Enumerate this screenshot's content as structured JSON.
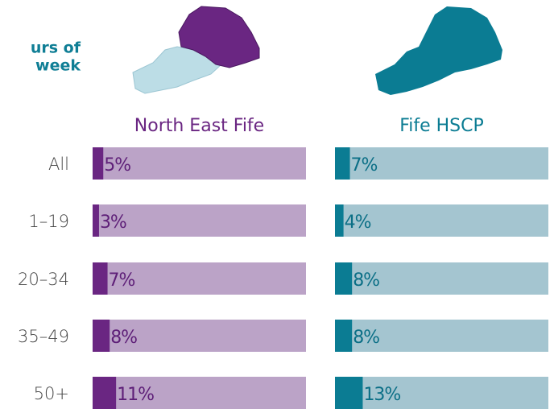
{
  "chart_data": {
    "type": "bar",
    "title_lines": [
      "urs of",
      "week"
    ],
    "categories": [
      "All",
      "1–19",
      "20–34",
      "35–49",
      "50+"
    ],
    "xlim": [
      0,
      100
    ],
    "series": [
      {
        "name": "North East Fife",
        "color": "#6a2682",
        "track_color": "#bba3c7",
        "label_color": "#5e1f78",
        "values": [
          5,
          3,
          7,
          8,
          11
        ],
        "value_labels": [
          "5%",
          "3%",
          "7%",
          "8%",
          "11%"
        ]
      },
      {
        "name": "Fife HSCP",
        "color": "#0b7c93",
        "track_color": "#a4c5d0",
        "label_color": "#0b6f86",
        "values": [
          7,
          4,
          8,
          8,
          13
        ],
        "value_labels": [
          "7%",
          "4%",
          "8%",
          "8%",
          "13%"
        ]
      }
    ]
  }
}
